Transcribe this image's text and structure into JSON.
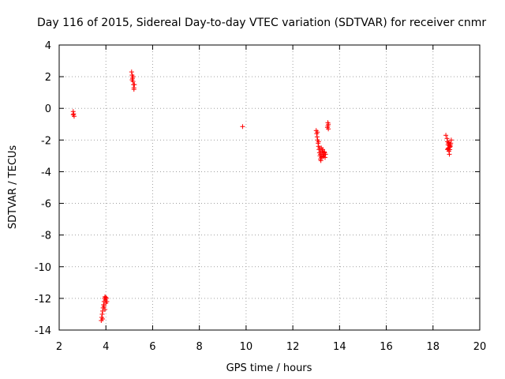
{
  "chart_data": {
    "type": "scatter",
    "title": "Day 116 of 2015, Sidereal Day-to-day VTEC variation (SDTVAR) for receiver cnmr",
    "xlabel": "GPS time / hours",
    "ylabel": "SDTVAR / TECUs",
    "xlim": [
      2,
      20
    ],
    "ylim": [
      -14,
      4
    ],
    "xticks": [
      2,
      4,
      6,
      8,
      10,
      12,
      14,
      16,
      18,
      20
    ],
    "yticks": [
      4,
      2,
      0,
      -2,
      -4,
      -6,
      -8,
      -10,
      -12,
      -14
    ],
    "grid": true,
    "marker": "+",
    "color": "#ff0000",
    "series": [
      {
        "name": "SDTVAR",
        "points": [
          [
            2.6,
            -0.2
          ],
          [
            2.6,
            -0.4
          ],
          [
            2.62,
            -0.35
          ],
          [
            2.64,
            -0.5
          ],
          [
            3.8,
            -13.4
          ],
          [
            3.82,
            -13.2
          ],
          [
            3.84,
            -13.0
          ],
          [
            3.86,
            -12.8
          ],
          [
            3.88,
            -12.6
          ],
          [
            3.86,
            -13.3
          ],
          [
            3.9,
            -12.4
          ],
          [
            3.92,
            -12.2
          ],
          [
            3.94,
            -12.0
          ],
          [
            3.96,
            -11.9
          ],
          [
            3.98,
            -12.1
          ],
          [
            4.0,
            -12.3
          ],
          [
            4.02,
            -12.0
          ],
          [
            4.04,
            -12.2
          ],
          [
            3.92,
            -12.5
          ],
          [
            3.96,
            -12.7
          ],
          [
            4.0,
            -11.95
          ],
          [
            5.1,
            2.3
          ],
          [
            5.12,
            2.1
          ],
          [
            5.14,
            1.9
          ],
          [
            5.16,
            1.7
          ],
          [
            5.18,
            1.5
          ],
          [
            5.2,
            1.3
          ],
          [
            5.22,
            1.5
          ],
          [
            5.16,
            2.0
          ],
          [
            5.2,
            1.2
          ],
          [
            5.12,
            1.8
          ],
          [
            9.85,
            -1.15
          ],
          [
            13.0,
            -1.4
          ],
          [
            13.02,
            -1.6
          ],
          [
            13.04,
            -1.8
          ],
          [
            13.06,
            -2.0
          ],
          [
            13.08,
            -2.2
          ],
          [
            13.1,
            -2.4
          ],
          [
            13.12,
            -2.6
          ],
          [
            13.14,
            -2.8
          ],
          [
            13.16,
            -3.0
          ],
          [
            13.18,
            -3.2
          ],
          [
            13.2,
            -3.3
          ],
          [
            13.22,
            -3.1
          ],
          [
            13.24,
            -2.9
          ],
          [
            13.26,
            -2.7
          ],
          [
            13.28,
            -2.6
          ],
          [
            13.3,
            -2.8
          ],
          [
            13.32,
            -3.0
          ],
          [
            13.34,
            -2.9
          ],
          [
            13.36,
            -2.8
          ],
          [
            13.38,
            -3.1
          ],
          [
            13.4,
            -2.9
          ],
          [
            13.1,
            -2.1
          ],
          [
            13.15,
            -2.5
          ],
          [
            13.2,
            -2.7
          ],
          [
            13.05,
            -1.5
          ],
          [
            13.25,
            -3.0
          ],
          [
            13.3,
            -3.05
          ],
          [
            13.35,
            -2.75
          ],
          [
            13.18,
            -2.9
          ],
          [
            13.22,
            -2.5
          ],
          [
            13.5,
            -0.9
          ],
          [
            13.52,
            -1.0
          ],
          [
            13.5,
            -1.1
          ],
          [
            13.48,
            -1.2
          ],
          [
            13.52,
            -1.3
          ],
          [
            18.55,
            -1.7
          ],
          [
            18.6,
            -1.9
          ],
          [
            18.62,
            -2.1
          ],
          [
            18.64,
            -2.3
          ],
          [
            18.66,
            -2.5
          ],
          [
            18.68,
            -2.7
          ],
          [
            18.7,
            -2.9
          ],
          [
            18.72,
            -2.6
          ],
          [
            18.74,
            -2.4
          ],
          [
            18.76,
            -2.2
          ],
          [
            18.78,
            -2.0
          ],
          [
            18.66,
            -2.2
          ],
          [
            18.7,
            -2.35
          ],
          [
            18.72,
            -2.45
          ],
          [
            18.64,
            -2.55
          ],
          [
            18.68,
            -2.15
          ],
          [
            18.74,
            -2.3
          ],
          [
            18.62,
            -2.6
          ]
        ]
      }
    ]
  }
}
